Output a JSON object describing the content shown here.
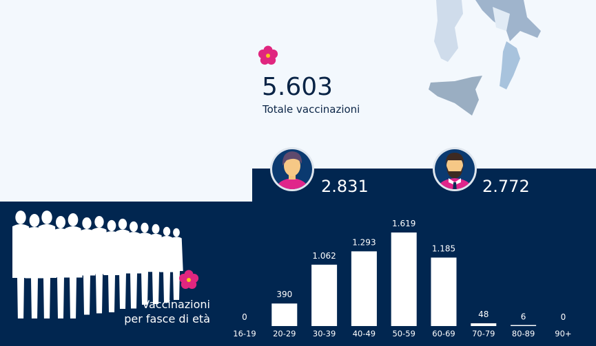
{
  "summary": {
    "total": "5.603",
    "total_label": "Totale vaccinazioni"
  },
  "gender": {
    "female_count": "2.831",
    "male_count": "2.772"
  },
  "section_title": {
    "line1": "Vaccinazioni",
    "line2": "per fasce di età"
  },
  "colors": {
    "dark_bg": "#012650",
    "light_bg": "#f3f8fd",
    "flower": "#e0267f",
    "bar": "#ffffff"
  },
  "icons": [
    "flower-icon",
    "woman-avatar-icon",
    "man-avatar-icon",
    "crowd-silhouette",
    "italy-map"
  ],
  "chart_data": {
    "type": "bar",
    "categories": [
      "16-19",
      "20-29",
      "30-39",
      "40-49",
      "50-59",
      "60-69",
      "70-79",
      "80-89",
      "90+"
    ],
    "values": [
      0,
      390,
      1062,
      1293,
      1619,
      1185,
      48,
      6,
      0
    ],
    "value_labels": [
      "0",
      "390",
      "1.062",
      "1.293",
      "1.619",
      "1.185",
      "48",
      "6",
      "0"
    ],
    "title": "",
    "xlabel": "",
    "ylabel": ""
  }
}
